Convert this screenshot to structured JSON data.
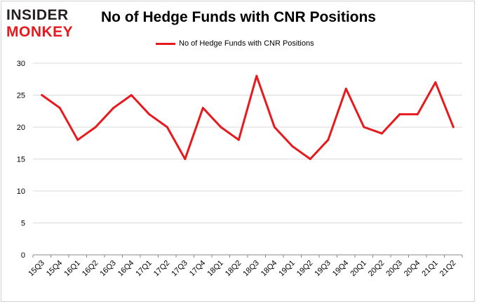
{
  "logo": {
    "line1": "INSIDER",
    "line2": "MONKEY",
    "color_dark": "#231f20",
    "color_accent": "#e8191d"
  },
  "chart_data": {
    "type": "line",
    "title": "No of Hedge Funds with CNR Positions",
    "xlabel": "",
    "ylabel": "",
    "ylim": [
      0,
      30
    ],
    "yticks": [
      0,
      5,
      10,
      15,
      20,
      25,
      30
    ],
    "grid": true,
    "legend_position": "top-center",
    "categories": [
      "15Q3",
      "15Q4",
      "16Q1",
      "16Q2",
      "16Q3",
      "16Q4",
      "17Q1",
      "17Q2",
      "17Q3",
      "17Q4",
      "18Q1",
      "18Q2",
      "18Q3",
      "18Q4",
      "19Q1",
      "19Q2",
      "19Q3",
      "19Q4",
      "20Q1",
      "20Q2",
      "20Q3",
      "20Q4",
      "21Q1",
      "21Q2"
    ],
    "series": [
      {
        "name": "No of Hedge Funds with CNR Positions",
        "color": "#e8191d",
        "values": [
          25,
          23,
          18,
          20,
          23,
          25,
          22,
          20,
          15,
          23,
          20,
          18,
          28,
          20,
          17,
          15,
          18,
          26,
          20,
          19,
          22,
          22,
          27,
          20
        ]
      }
    ]
  }
}
